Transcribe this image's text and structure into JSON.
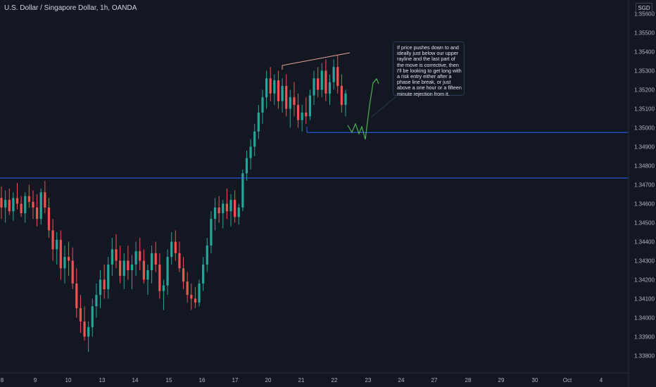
{
  "header": {
    "title": "U.S. Dollar / Singapore Dollar, 1h, OANDA",
    "currency": "SGD"
  },
  "colors": {
    "background": "#131722",
    "up": "#26a69a",
    "down": "#ef5350",
    "level_line": "#2962ff",
    "axis_text": "#b2b5be",
    "rayline": "#e6a39b",
    "projection": "#4caf50"
  },
  "annotation": {
    "text": "If price pushes down to and ideally just below our upper rayline and the last part of the move is corrective, then I'll be looking to get long with a risk entry either after a phase line break, or just above a one hour or a fifteen minute rejection from it."
  },
  "chart_data": {
    "type": "candlestick",
    "title": "U.S. Dollar / Singapore Dollar, 1h, OANDA",
    "ylim": [
      1.3375,
      1.3565
    ],
    "y_ticks": [
      "1.35600",
      "1.35500",
      "1.35400",
      "1.35300",
      "1.35200",
      "1.35100",
      "1.35000",
      "1.34900",
      "1.34800",
      "1.34700",
      "1.34600",
      "1.34500",
      "1.34400",
      "1.34300",
      "1.34200",
      "1.34100",
      "1.34000",
      "1.33900",
      "1.33800"
    ],
    "x_ticks": [
      "8",
      "9",
      "10",
      "13",
      "14",
      "15",
      "16",
      "17",
      "20",
      "21",
      "22",
      "23",
      "24",
      "27",
      "28",
      "29",
      "30",
      "Oct",
      "4"
    ],
    "grid": false,
    "levels": [
      1.34735,
      1.34975
    ],
    "series": [
      {
        "values": [
          [
            1.3463,
            1.3469,
            1.3452,
            1.3458
          ],
          [
            1.3458,
            1.3467,
            1.345,
            1.3462
          ],
          [
            1.3462,
            1.3468,
            1.3454,
            1.3456
          ],
          [
            1.3456,
            1.3466,
            1.3451,
            1.3463
          ],
          [
            1.3463,
            1.3471,
            1.3457,
            1.346
          ],
          [
            1.346,
            1.3464,
            1.3453,
            1.3455
          ],
          [
            1.3455,
            1.3466,
            1.345,
            1.3464
          ],
          [
            1.3464,
            1.347,
            1.3458,
            1.3461
          ],
          [
            1.3461,
            1.3467,
            1.3452,
            1.3458
          ],
          [
            1.3458,
            1.3465,
            1.3448,
            1.3452
          ],
          [
            1.3452,
            1.3468,
            1.3449,
            1.3466
          ],
          [
            1.3466,
            1.3472,
            1.3455,
            1.3458
          ],
          [
            1.3458,
            1.3463,
            1.3442,
            1.3446
          ],
          [
            1.3446,
            1.3452,
            1.343,
            1.3436
          ],
          [
            1.3436,
            1.3445,
            1.3428,
            1.3441
          ],
          [
            1.3441,
            1.3446,
            1.342,
            1.3426
          ],
          [
            1.3426,
            1.3438,
            1.3418,
            1.3432
          ],
          [
            1.3432,
            1.344,
            1.3422,
            1.343
          ],
          [
            1.343,
            1.3437,
            1.3415,
            1.3418
          ],
          [
            1.3418,
            1.3426,
            1.34,
            1.3405
          ],
          [
            1.3405,
            1.3412,
            1.3392,
            1.3398
          ],
          [
            1.3398,
            1.3406,
            1.3388,
            1.339
          ],
          [
            1.339,
            1.3398,
            1.3382,
            1.3395
          ],
          [
            1.3395,
            1.341,
            1.339,
            1.3406
          ],
          [
            1.3406,
            1.3418,
            1.34,
            1.3412
          ],
          [
            1.3412,
            1.3425,
            1.3405,
            1.342
          ],
          [
            1.342,
            1.3428,
            1.341,
            1.3415
          ],
          [
            1.3415,
            1.3432,
            1.341,
            1.3428
          ],
          [
            1.3428,
            1.3442,
            1.3422,
            1.3436
          ],
          [
            1.3436,
            1.3444,
            1.3426,
            1.343
          ],
          [
            1.343,
            1.3438,
            1.3418,
            1.3422
          ],
          [
            1.3422,
            1.3434,
            1.3415,
            1.343
          ],
          [
            1.343,
            1.3438,
            1.342,
            1.3425
          ],
          [
            1.3425,
            1.3433,
            1.3415,
            1.3428
          ],
          [
            1.3428,
            1.344,
            1.3422,
            1.3435
          ],
          [
            1.3435,
            1.3442,
            1.3425,
            1.343
          ],
          [
            1.343,
            1.3436,
            1.3418,
            1.342
          ],
          [
            1.342,
            1.3428,
            1.3412,
            1.3425
          ],
          [
            1.3425,
            1.3438,
            1.3418,
            1.3434
          ],
          [
            1.3434,
            1.344,
            1.3424,
            1.3428
          ],
          [
            1.3428,
            1.3434,
            1.341,
            1.3414
          ],
          [
            1.3414,
            1.342,
            1.3404,
            1.3417
          ],
          [
            1.3417,
            1.3436,
            1.3412,
            1.3432
          ],
          [
            1.3432,
            1.3445,
            1.3428,
            1.344
          ],
          [
            1.344,
            1.3446,
            1.343,
            1.3434
          ],
          [
            1.3434,
            1.344,
            1.3424,
            1.3426
          ],
          [
            1.3426,
            1.3432,
            1.3415,
            1.3419
          ],
          [
            1.3419,
            1.3424,
            1.3408,
            1.3412
          ],
          [
            1.3412,
            1.3418,
            1.3404,
            1.341
          ],
          [
            1.341,
            1.3416,
            1.3405,
            1.3408
          ],
          [
            1.3408,
            1.342,
            1.3406,
            1.3418
          ],
          [
            1.3418,
            1.3432,
            1.3414,
            1.3428
          ],
          [
            1.3428,
            1.3442,
            1.3424,
            1.3438
          ],
          [
            1.3438,
            1.3456,
            1.3434,
            1.3452
          ],
          [
            1.3452,
            1.3463,
            1.3446,
            1.3458
          ],
          [
            1.3458,
            1.3464,
            1.345,
            1.3455
          ],
          [
            1.3455,
            1.3462,
            1.3447,
            1.346
          ],
          [
            1.346,
            1.3468,
            1.3452,
            1.3456
          ],
          [
            1.3456,
            1.3465,
            1.3448,
            1.3462
          ],
          [
            1.3462,
            1.3467,
            1.345,
            1.3453
          ],
          [
            1.3453,
            1.346,
            1.3449,
            1.3458
          ],
          [
            1.3458,
            1.3478,
            1.3456,
            1.3476
          ],
          [
            1.3476,
            1.3488,
            1.3472,
            1.3484
          ],
          [
            1.3484,
            1.3494,
            1.3478,
            1.349
          ],
          [
            1.349,
            1.3502,
            1.3485,
            1.3498
          ],
          [
            1.3498,
            1.3512,
            1.3494,
            1.3508
          ],
          [
            1.3508,
            1.352,
            1.3502,
            1.3516
          ],
          [
            1.3516,
            1.353,
            1.351,
            1.3526
          ],
          [
            1.3526,
            1.3532,
            1.3514,
            1.3518
          ],
          [
            1.3518,
            1.3528,
            1.3512,
            1.3525
          ],
          [
            1.3525,
            1.353,
            1.351,
            1.3514
          ],
          [
            1.3514,
            1.3526,
            1.3508,
            1.3522
          ],
          [
            1.3522,
            1.3528,
            1.3506,
            1.351
          ],
          [
            1.351,
            1.352,
            1.35,
            1.3516
          ],
          [
            1.3516,
            1.3524,
            1.3506,
            1.3512
          ],
          [
            1.3512,
            1.3518,
            1.35,
            1.3504
          ],
          [
            1.3504,
            1.3512,
            1.3498,
            1.3508
          ],
          [
            1.3508,
            1.3516,
            1.3502,
            1.3506
          ],
          [
            1.3506,
            1.352,
            1.3504,
            1.3517
          ],
          [
            1.3517,
            1.353,
            1.3512,
            1.3526
          ],
          [
            1.3526,
            1.3532,
            1.3516,
            1.352
          ],
          [
            1.352,
            1.3534,
            1.3516,
            1.353
          ],
          [
            1.353,
            1.3536,
            1.3514,
            1.3518
          ],
          [
            1.3518,
            1.3528,
            1.3512,
            1.3524
          ],
          [
            1.3524,
            1.3536,
            1.352,
            1.3532
          ],
          [
            1.3532,
            1.3538,
            1.3518,
            1.3522
          ],
          [
            1.3522,
            1.3528,
            1.3508,
            1.3512
          ],
          [
            1.3512,
            1.352,
            1.3506,
            1.3518
          ]
        ]
      }
    ],
    "annotations": [
      "rayline",
      "projection-path",
      "arrow"
    ]
  }
}
